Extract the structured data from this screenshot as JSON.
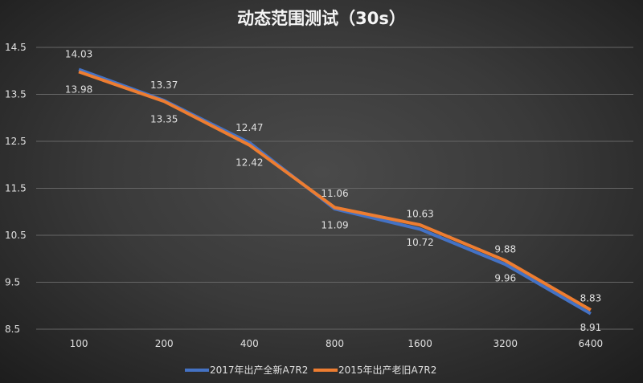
{
  "chart_data": {
    "type": "line",
    "title": "动态范围测试（30s）",
    "categories": [
      "100",
      "200",
      "400",
      "800",
      "1600",
      "3200",
      "6400"
    ],
    "series": [
      {
        "name": "2017年出产全新A7R2",
        "color": "#4472c4",
        "values": [
          14.03,
          13.37,
          12.47,
          11.06,
          10.63,
          9.88,
          8.83
        ],
        "label_position": "above"
      },
      {
        "name": "2015年出产老旧A7R2",
        "color": "#ed7d31",
        "values": [
          13.98,
          13.35,
          12.42,
          11.09,
          10.72,
          9.96,
          8.91
        ],
        "label_position": "below"
      }
    ],
    "yticks": [
      "8.5",
      "9.5",
      "10.5",
      "11.5",
      "12.5",
      "13.5",
      "14.5"
    ],
    "ylim": [
      8.5,
      14.5
    ],
    "grid": true,
    "legend": "bottom",
    "background": "#333333"
  }
}
